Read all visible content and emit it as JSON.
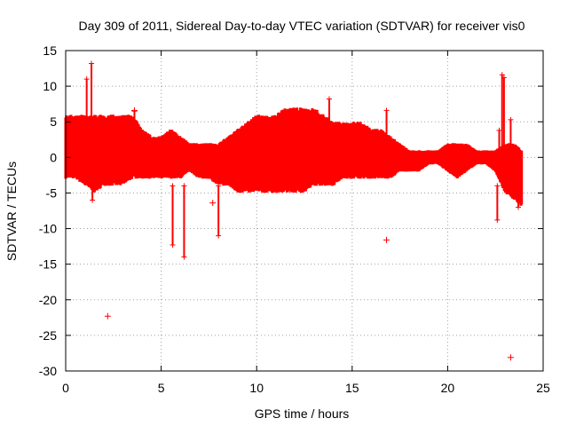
{
  "chart_data": {
    "type": "scatter",
    "title": "Day 309 of 2011, Sidereal Day-to-day VTEC variation (SDTVAR) for receiver vis0",
    "xlabel": "GPS time / hours",
    "ylabel": "SDTVAR / TECUs",
    "xlim": [
      0,
      25
    ],
    "ylim": [
      -30,
      15
    ],
    "x_ticks": [
      0,
      5,
      10,
      15,
      20,
      25
    ],
    "y_ticks": [
      -30,
      -25,
      -20,
      -15,
      -10,
      -5,
      0,
      5,
      10,
      15
    ],
    "grid": true,
    "marker": "+",
    "color": "#ff0000",
    "band": [
      [
        0.0,
        -3,
        6
      ],
      [
        0.5,
        -3,
        6
      ],
      [
        1.0,
        -4,
        6
      ],
      [
        1.5,
        -5,
        6
      ],
      [
        2.0,
        -4,
        6
      ],
      [
        2.5,
        -4,
        6
      ],
      [
        3.0,
        -4,
        6
      ],
      [
        3.5,
        -3,
        6
      ],
      [
        4.0,
        -3,
        4
      ],
      [
        4.5,
        -3,
        3
      ],
      [
        5.0,
        -3,
        3
      ],
      [
        5.5,
        -3,
        4
      ],
      [
        6.0,
        -3,
        3
      ],
      [
        6.5,
        -2,
        2
      ],
      [
        7.0,
        -3,
        2
      ],
      [
        7.5,
        -3,
        2
      ],
      [
        8.0,
        -4,
        2
      ],
      [
        8.5,
        -4,
        3
      ],
      [
        9.0,
        -5,
        4
      ],
      [
        9.5,
        -5,
        5
      ],
      [
        10.0,
        -5,
        6
      ],
      [
        10.5,
        -5,
        6
      ],
      [
        11.0,
        -5,
        6
      ],
      [
        11.5,
        -5,
        7
      ],
      [
        12.0,
        -5,
        7
      ],
      [
        12.5,
        -5,
        7
      ],
      [
        13.0,
        -4,
        7
      ],
      [
        13.5,
        -4,
        6
      ],
      [
        14.0,
        -4,
        5
      ],
      [
        14.5,
        -3,
        5
      ],
      [
        15.0,
        -3,
        5
      ],
      [
        15.5,
        -3,
        5
      ],
      [
        16.0,
        -3,
        4
      ],
      [
        16.5,
        -3,
        4
      ],
      [
        17.0,
        -3,
        3
      ],
      [
        17.5,
        -2,
        2
      ],
      [
        18.0,
        -2,
        1
      ],
      [
        18.5,
        -2,
        1
      ],
      [
        19.0,
        -1,
        1
      ],
      [
        19.5,
        -1,
        1
      ],
      [
        20.0,
        -2,
        2
      ],
      [
        20.5,
        -3,
        2
      ],
      [
        21.0,
        -2,
        2
      ],
      [
        21.5,
        -1,
        1
      ],
      [
        22.0,
        -1,
        1
      ],
      [
        22.5,
        -2,
        1
      ],
      [
        23.0,
        -5,
        2
      ],
      [
        23.5,
        -6,
        2
      ],
      [
        23.9,
        -7,
        1
      ]
    ],
    "spikes": [
      [
        1.1,
        1,
        11
      ],
      [
        1.35,
        1,
        13.2
      ],
      [
        1.4,
        -6,
        0
      ],
      [
        3.6,
        0,
        6.5
      ],
      [
        5.6,
        -12.3,
        -4
      ],
      [
        6.2,
        -14,
        -4
      ],
      [
        8.0,
        -11,
        -4
      ],
      [
        13.8,
        0,
        8.2
      ],
      [
        16.8,
        0,
        6.6
      ],
      [
        22.6,
        -8.8,
        -4
      ],
      [
        22.7,
        0,
        3.8
      ],
      [
        22.85,
        0,
        11.6
      ],
      [
        22.95,
        0,
        11.2
      ],
      [
        23.3,
        0,
        5.3
      ],
      [
        23.7,
        -7,
        -4
      ]
    ],
    "outliers": [
      [
        2.2,
        -22.3
      ],
      [
        7.7,
        -6.4
      ],
      [
        16.8,
        -11.6
      ],
      [
        23.3,
        -28.1
      ],
      [
        3.1,
        -3.0
      ],
      [
        3.6,
        6.6
      ]
    ]
  }
}
